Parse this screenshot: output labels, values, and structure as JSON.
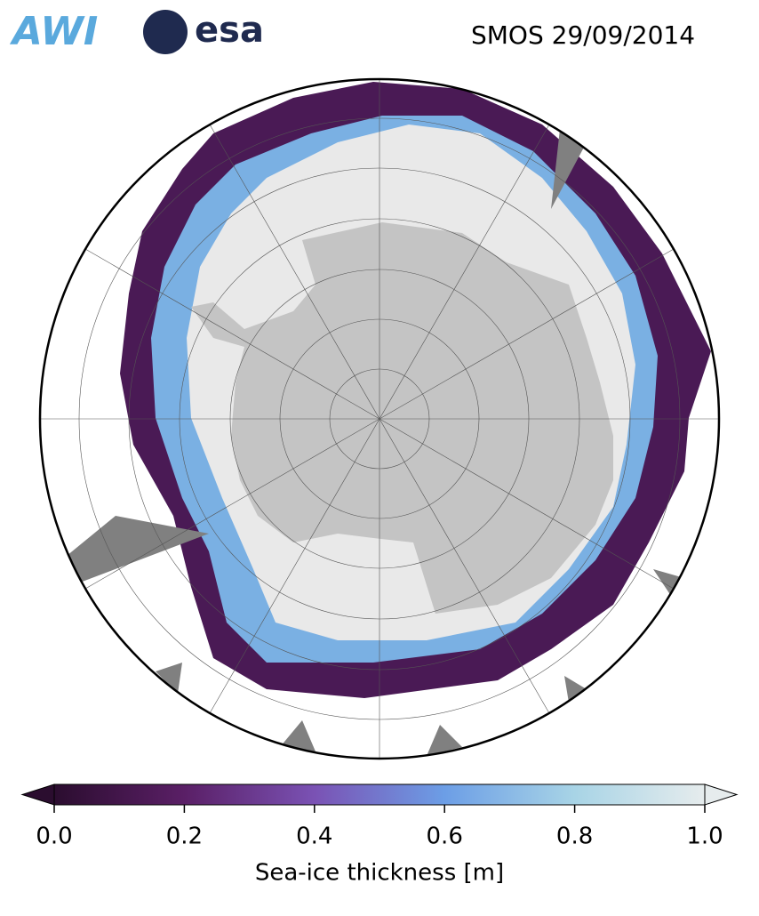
{
  "header": {
    "logos": [
      "AWI",
      "esa"
    ],
    "title": "SMOS 29/09/2014"
  },
  "colorbar": {
    "label": "Sea-ice thickness [m]",
    "lim": [
      0,
      1
    ],
    "ticks": [
      {
        "value": 0,
        "label": "0.0"
      },
      0.2,
      0.4,
      0.6,
      0.8,
      {
        "value": 1,
        "label": "1.0"
      }
    ],
    "colors": [
      "#2b0d2f",
      "#5a1f66",
      "#7a52b4",
      "#6c9ee6",
      "#a8d4e6",
      "#e6eced"
    ]
  }
}
